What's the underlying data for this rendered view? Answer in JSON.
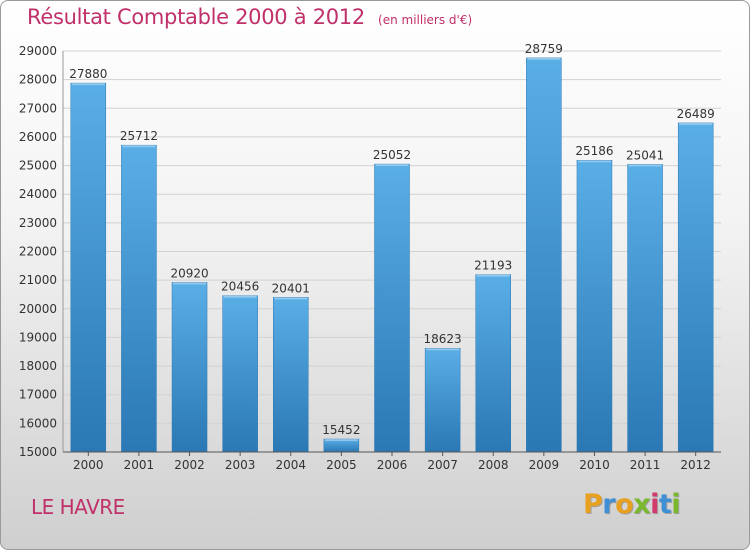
{
  "chart_data": {
    "type": "bar",
    "title": "Résultat Comptable 2000 à 2012",
    "subtitle": "(en milliers d'€)",
    "categories": [
      "2000",
      "2001",
      "2002",
      "2003",
      "2004",
      "2005",
      "2006",
      "2007",
      "2008",
      "2009",
      "2010",
      "2011",
      "2012"
    ],
    "values": [
      27880,
      25712,
      20920,
      20456,
      20401,
      15452,
      25052,
      18623,
      21193,
      28759,
      25186,
      25041,
      26489
    ],
    "ylim": [
      15000,
      29000
    ],
    "yticks": [
      15000,
      16000,
      17000,
      18000,
      19000,
      20000,
      21000,
      22000,
      23000,
      24000,
      25000,
      26000,
      27000,
      28000,
      29000
    ],
    "xlabel": "",
    "ylabel": "",
    "grid": true,
    "bar_color": "#3d8fd0"
  },
  "footer": {
    "place": "LE HAVRE",
    "logo": "Proxiti"
  },
  "logo_colors": [
    "#e8a020",
    "#3f8fd6",
    "#e8a020",
    "#7ab82e",
    "#d23a6e",
    "#3f8fd6",
    "#7ab82e"
  ]
}
